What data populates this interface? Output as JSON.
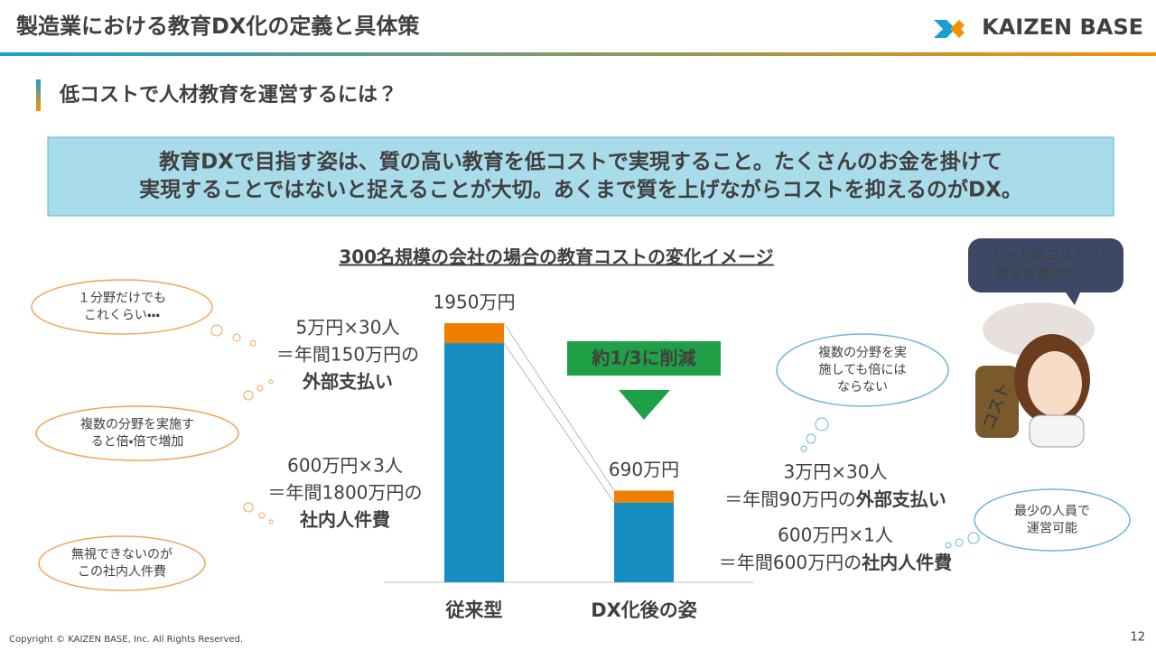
{
  "header": {
    "title": "製造業における教育DX化の定義と具体策",
    "logo": "KAIZEN BASE"
  },
  "section_title": "低コストで人材教育を運営するには？",
  "key_message": [
    "教育DXで目指す姿は、質の高い教育を低コストで実現すること。たくさんのお金を掛けて",
    "実現することではないと捉えることが大切。あくまで質を上げながらコストを抑えるのがDX。"
  ],
  "chart_data": {
    "type": "stacked_bar",
    "title": "300名規模の会社の場合の教育コストの変化イメージ",
    "categories": [
      "従来型",
      "DX化後の姿"
    ],
    "category_colors": [
      "#c00000",
      "#1fa046"
    ],
    "series": [
      {
        "color": "#168fc0",
        "values": [
          1800,
          600
        ]
      },
      {
        "color": "#ee7d00",
        "values": [
          150,
          90
        ]
      }
    ],
    "total_labels": [
      "1950万円",
      "690万円"
    ],
    "reduction_label": "約1/3に削減"
  },
  "annotations": {
    "left_external": [
      "5万円×30人",
      "＝年間150万円の",
      "外部支払い"
    ],
    "left_internal": [
      "600万円×3人",
      "＝年間1800万円の",
      "社内人件費"
    ],
    "right_external": [
      "3万円×30人",
      "＝年間90万円の",
      "外部支払い"
    ],
    "right_internal": [
      "600万円×1人",
      "＝年間600万円の",
      "社内人件費"
    ]
  },
  "bubbles": [
    [
      "１分野だけでも",
      "これくらい・・・"
    ],
    [
      "複数の分野を実施す",
      "ると倍・倍で増加"
    ],
    [
      "無視できないのが",
      "この社内人件費"
    ],
    [
      "複数の分野を実",
      "施しても倍には",
      "ならない"
    ],
    [
      "最少の人員で",
      "運営可能"
    ]
  ],
  "speech": [
    "もっと低コストで",
    "教育を進めたい!"
  ],
  "illustration_label": "コスト",
  "footer": {
    "copyright": "Copyright ©  KAIZEN BASE, Inc.  All Rights Reserved.",
    "page": "12"
  }
}
